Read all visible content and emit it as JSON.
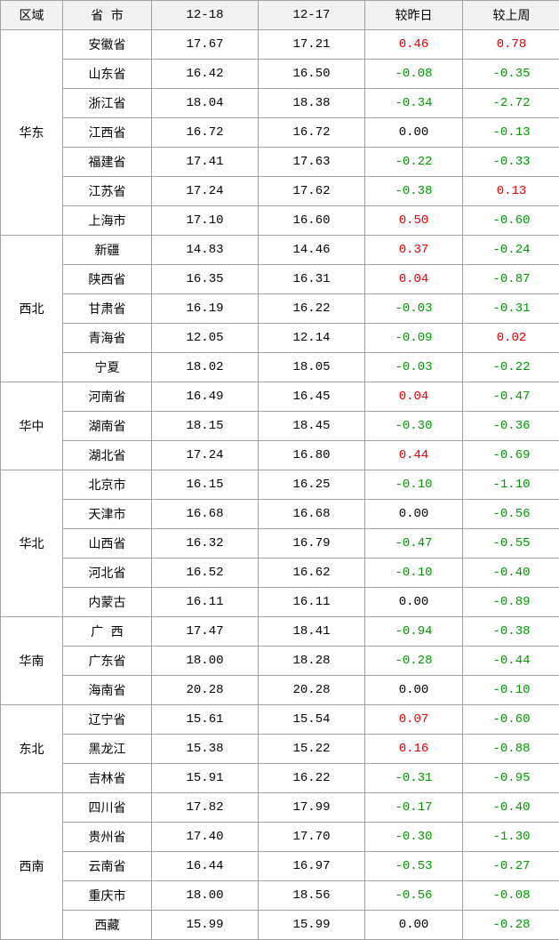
{
  "colors": {
    "header_bg": "#f2f2f2",
    "border": "#a0a0a0",
    "text": "#000000",
    "positive": "#e60000",
    "negative": "#009900",
    "zero": "#000000"
  },
  "columns": [
    "区域",
    "省 市",
    "12-18",
    "12-17",
    "较昨日",
    "较上周"
  ],
  "groups": [
    {
      "region": "华东",
      "rows": [
        {
          "prov": "安徽省",
          "d1": "17.67",
          "d2": "17.21",
          "diff1": "0.46",
          "diff2": "0.78"
        },
        {
          "prov": "山东省",
          "d1": "16.42",
          "d2": "16.50",
          "diff1": "-0.08",
          "diff2": "-0.35"
        },
        {
          "prov": "浙江省",
          "d1": "18.04",
          "d2": "18.38",
          "diff1": "-0.34",
          "diff2": "-2.72"
        },
        {
          "prov": "江西省",
          "d1": "16.72",
          "d2": "16.72",
          "diff1": "0.00",
          "diff2": "-0.13"
        },
        {
          "prov": "福建省",
          "d1": "17.41",
          "d2": "17.63",
          "diff1": "-0.22",
          "diff2": "-0.33"
        },
        {
          "prov": "江苏省",
          "d1": "17.24",
          "d2": "17.62",
          "diff1": "-0.38",
          "diff2": "0.13"
        },
        {
          "prov": "上海市",
          "d1": "17.10",
          "d2": "16.60",
          "diff1": "0.50",
          "diff2": "-0.60"
        }
      ]
    },
    {
      "region": "西北",
      "rows": [
        {
          "prov": "新疆",
          "d1": "14.83",
          "d2": "14.46",
          "diff1": "0.37",
          "diff2": "-0.24"
        },
        {
          "prov": "陕西省",
          "d1": "16.35",
          "d2": "16.31",
          "diff1": "0.04",
          "diff2": "-0.87"
        },
        {
          "prov": "甘肃省",
          "d1": "16.19",
          "d2": "16.22",
          "diff1": "-0.03",
          "diff2": "-0.31"
        },
        {
          "prov": "青海省",
          "d1": "12.05",
          "d2": "12.14",
          "diff1": "-0.09",
          "diff2": "0.02"
        },
        {
          "prov": "宁夏",
          "d1": "18.02",
          "d2": "18.05",
          "diff1": "-0.03",
          "diff2": "-0.22"
        }
      ]
    },
    {
      "region": "华中",
      "rows": [
        {
          "prov": "河南省",
          "d1": "16.49",
          "d2": "16.45",
          "diff1": "0.04",
          "diff2": "-0.47"
        },
        {
          "prov": "湖南省",
          "d1": "18.15",
          "d2": "18.45",
          "diff1": "-0.30",
          "diff2": "-0.36"
        },
        {
          "prov": "湖北省",
          "d1": "17.24",
          "d2": "16.80",
          "diff1": "0.44",
          "diff2": "-0.69"
        }
      ]
    },
    {
      "region": "华北",
      "rows": [
        {
          "prov": "北京市",
          "d1": "16.15",
          "d2": "16.25",
          "diff1": "-0.10",
          "diff2": "-1.10"
        },
        {
          "prov": "天津市",
          "d1": "16.68",
          "d2": "16.68",
          "diff1": "0.00",
          "diff2": "-0.56"
        },
        {
          "prov": "山西省",
          "d1": "16.32",
          "d2": "16.79",
          "diff1": "-0.47",
          "diff2": "-0.55"
        },
        {
          "prov": "河北省",
          "d1": "16.52",
          "d2": "16.62",
          "diff1": "-0.10",
          "diff2": "-0.40"
        },
        {
          "prov": "内蒙古",
          "d1": "16.11",
          "d2": "16.11",
          "diff1": "0.00",
          "diff2": "-0.89"
        }
      ]
    },
    {
      "region": "华南",
      "rows": [
        {
          "prov": "广 西",
          "d1": "17.47",
          "d2": "18.41",
          "diff1": "-0.94",
          "diff2": "-0.38"
        },
        {
          "prov": "广东省",
          "d1": "18.00",
          "d2": "18.28",
          "diff1": "-0.28",
          "diff2": "-0.44"
        },
        {
          "prov": "海南省",
          "d1": "20.28",
          "d2": "20.28",
          "diff1": "0.00",
          "diff2": "-0.10"
        }
      ]
    },
    {
      "region": "东北",
      "rows": [
        {
          "prov": "辽宁省",
          "d1": "15.61",
          "d2": "15.54",
          "diff1": "0.07",
          "diff2": "-0.60"
        },
        {
          "prov": "黑龙江",
          "d1": "15.38",
          "d2": "15.22",
          "diff1": "0.16",
          "diff2": "-0.88"
        },
        {
          "prov": "吉林省",
          "d1": "15.91",
          "d2": "16.22",
          "diff1": "-0.31",
          "diff2": "-0.95"
        }
      ]
    },
    {
      "region": "西南",
      "rows": [
        {
          "prov": "四川省",
          "d1": "17.82",
          "d2": "17.99",
          "diff1": "-0.17",
          "diff2": "-0.40"
        },
        {
          "prov": "贵州省",
          "d1": "17.40",
          "d2": "17.70",
          "diff1": "-0.30",
          "diff2": "-1.30"
        },
        {
          "prov": "云南省",
          "d1": "16.44",
          "d2": "16.97",
          "diff1": "-0.53",
          "diff2": "-0.27"
        },
        {
          "prov": "重庆市",
          "d1": "18.00",
          "d2": "18.56",
          "diff1": "-0.56",
          "diff2": "-0.08"
        },
        {
          "prov": "西藏",
          "d1": "15.99",
          "d2": "15.99",
          "diff1": "0.00",
          "diff2": "-0.28"
        }
      ]
    }
  ]
}
